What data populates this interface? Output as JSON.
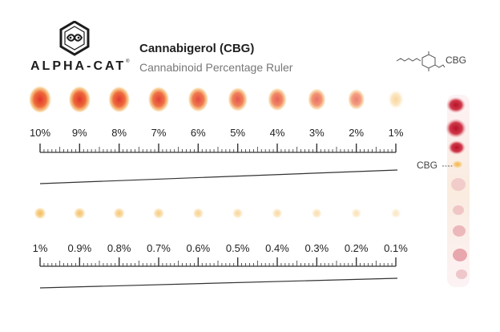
{
  "brand": {
    "name": "ALPHA-CAT",
    "mark": "®"
  },
  "header": {
    "title": "Cannabigerol (CBG)",
    "subtitle": "Cannabinoid Percentage Ruler"
  },
  "molecule": {
    "label": "CBG"
  },
  "strip": {
    "marker_label": "CBG"
  },
  "rows": [
    {
      "labels": [
        "10%",
        "9%",
        "8%",
        "7%",
        "6%",
        "5%",
        "4%",
        "3%",
        "2%",
        "1%"
      ],
      "spot_intensity": [
        1.0,
        0.95,
        0.9,
        0.85,
        0.78,
        0.7,
        0.62,
        0.52,
        0.42,
        0.28
      ]
    },
    {
      "labels": [
        "1%",
        "0.9%",
        "0.8%",
        "0.7%",
        "0.6%",
        "0.5%",
        "0.4%",
        "0.3%",
        "0.2%",
        "0.1%"
      ],
      "spot_intensity": [
        0.28,
        0.25,
        0.22,
        0.19,
        0.16,
        0.13,
        0.11,
        0.09,
        0.07,
        0.04
      ]
    }
  ],
  "colors": {
    "spot_core": "#e0342c",
    "spot_edge": "#f5b765",
    "ink": "#333333"
  }
}
